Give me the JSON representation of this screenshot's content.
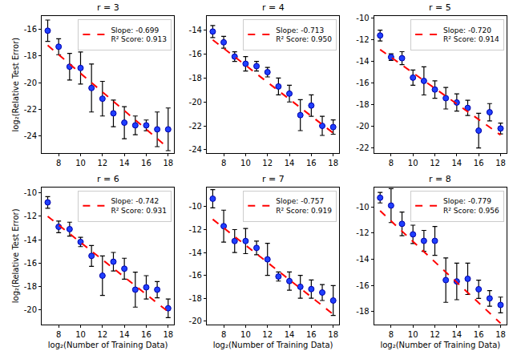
{
  "chart_data": [
    {
      "type": "scatter",
      "title": "r = 3",
      "y_label": "log₂(Relative Test Error)",
      "x": [
        7,
        8,
        9,
        10,
        11,
        12,
        13,
        14,
        15,
        16,
        17,
        18
      ],
      "values": [
        -16.1,
        -17.3,
        -18.8,
        -18.9,
        -20.4,
        -21.2,
        -22.3,
        -23.0,
        -23.2,
        -23.2,
        -23.5,
        -23.5
      ],
      "error": [
        0.8,
        0.6,
        1.0,
        1.2,
        1.8,
        1.3,
        1.0,
        1.2,
        0.7,
        0.4,
        1.3,
        1.6
      ],
      "color": "#1f3fff",
      "marker": "circle",
      "fit": {
        "x": [
          7,
          18
        ],
        "values": [
          -17.2,
          -24.9
        ],
        "color": "#ff0000",
        "line_style": "dashed",
        "legend_lines": [
          "Slope: -0.699",
          "R² Score: 0.913"
        ]
      },
      "xlim": [
        6.45,
        18.55
      ],
      "xticks": [
        8,
        10,
        12,
        14,
        16,
        18
      ],
      "ylim": [
        -25.3,
        -15.0
      ],
      "yticks": [
        -24,
        -22,
        -20,
        -18,
        -16
      ],
      "grid": false,
      "legend": "upper right"
    },
    {
      "type": "scatter",
      "title": "r = 4",
      "x": [
        7,
        8,
        9,
        10,
        11,
        12,
        13,
        14,
        15,
        16,
        17,
        18
      ],
      "values": [
        -14.1,
        -15.0,
        -16.2,
        -16.8,
        -17.0,
        -17.5,
        -18.7,
        -19.3,
        -21.1,
        -20.3,
        -22.0,
        -22.1
      ],
      "error": [
        0.5,
        0.5,
        0.4,
        0.6,
        0.4,
        0.4,
        0.7,
        0.7,
        1.3,
        0.9,
        0.8,
        0.6
      ],
      "color": "#1f3fff",
      "marker": "circle",
      "fit": {
        "x": [
          7,
          18
        ],
        "values": [
          -14.8,
          -22.6
        ],
        "color": "#ff0000",
        "line_style": "dashed",
        "legend_lines": [
          "Slope: -0.713",
          "R² Score: 0.950"
        ]
      },
      "xlim": [
        6.45,
        18.55
      ],
      "xticks": [
        8,
        10,
        12,
        14,
        16,
        18
      ],
      "ylim": [
        -24.3,
        -12.8
      ],
      "yticks": [
        -24,
        -22,
        -20,
        -18,
        -16,
        -14
      ],
      "grid": false,
      "legend": "upper right"
    },
    {
      "type": "scatter",
      "title": "r = 5",
      "x": [
        7,
        8,
        9,
        10,
        11,
        12,
        13,
        14,
        15,
        16,
        17,
        18
      ],
      "values": [
        -11.6,
        -13.6,
        -13.7,
        -15.5,
        -15.8,
        -16.6,
        -17.4,
        -17.8,
        -18.3,
        -20.4,
        -18.7,
        -20.2
      ],
      "error": [
        0.5,
        0.3,
        0.6,
        0.7,
        1.3,
        0.8,
        1.0,
        0.8,
        0.7,
        1.6,
        0.8,
        0.5
      ],
      "color": "#1f3fff",
      "marker": "circle",
      "fit": {
        "x": [
          7,
          18
        ],
        "values": [
          -12.9,
          -20.8
        ],
        "color": "#ff0000",
        "line_style": "dashed",
        "legend_lines": [
          "Slope: -0.720",
          "R² Score: 0.914"
        ]
      },
      "xlim": [
        6.45,
        18.55
      ],
      "xticks": [
        8,
        10,
        12,
        14,
        16,
        18
      ],
      "ylim": [
        -22.5,
        -9.8
      ],
      "yticks": [
        -22,
        -20,
        -18,
        -16,
        -14,
        -12,
        -10
      ],
      "grid": false,
      "legend": "upper right"
    },
    {
      "type": "scatter",
      "title": "r = 6",
      "y_label": "log₂(Relative Test Error)",
      "x_label": "log₂(Number of Training Data)",
      "x": [
        7,
        8,
        9,
        10,
        11,
        12,
        13,
        14,
        15,
        16,
        17,
        18
      ],
      "values": [
        -10.8,
        -12.9,
        -13.1,
        -14.2,
        -15.4,
        -17.1,
        -15.9,
        -16.5,
        -18.3,
        -18.1,
        -18.3,
        -19.9
      ],
      "error": [
        0.5,
        0.5,
        0.6,
        0.4,
        0.9,
        1.7,
        0.8,
        0.9,
        1.5,
        1.0,
        0.7,
        0.8
      ],
      "color": "#1f3fff",
      "marker": "circle",
      "fit": {
        "x": [
          7,
          18
        ],
        "values": [
          -12.0,
          -20.2
        ],
        "color": "#ff0000",
        "line_style": "dashed",
        "legend_lines": [
          "Slope: -0.742",
          "R² Score: 0.931"
        ]
      },
      "xlim": [
        6.45,
        18.55
      ],
      "xticks": [
        8,
        10,
        12,
        14,
        16,
        18
      ],
      "ylim": [
        -21.3,
        -9.5
      ],
      "yticks": [
        -20,
        -18,
        -16,
        -14,
        -12,
        -10
      ],
      "grid": false,
      "legend": "upper right"
    },
    {
      "type": "scatter",
      "title": "r = 7",
      "x_label": "log₂(Number of Training Data)",
      "x": [
        7,
        8,
        9,
        10,
        11,
        12,
        13,
        14,
        15,
        16,
        17,
        18
      ],
      "values": [
        -9.3,
        -11.7,
        -13.0,
        -13.0,
        -13.6,
        -14.6,
        -16.1,
        -16.5,
        -17.0,
        -17.2,
        -17.5,
        -18.2
      ],
      "error": [
        0.8,
        1.4,
        1.0,
        1.1,
        0.6,
        1.4,
        0.4,
        0.8,
        1.0,
        0.8,
        0.7,
        1.3
      ],
      "color": "#1f3fff",
      "marker": "circle",
      "fit": {
        "x": [
          7,
          18
        ],
        "values": [
          -11.1,
          -19.4
        ],
        "color": "#ff0000",
        "line_style": "dashed",
        "legend_lines": [
          "Slope: -0.757",
          "R² Score: 0.919"
        ]
      },
      "xlim": [
        6.45,
        18.55
      ],
      "xticks": [
        8,
        10,
        12,
        14,
        16,
        18
      ],
      "ylim": [
        -20.3,
        -8.3
      ],
      "yticks": [
        -20,
        -18,
        -16,
        -14,
        -12,
        -10
      ],
      "grid": false,
      "legend": "upper right"
    },
    {
      "type": "scatter",
      "title": "r = 8",
      "x_label": "log₂(Number of Training Data)",
      "x": [
        7,
        8,
        9,
        10,
        11,
        12,
        13,
        14,
        15,
        16,
        17,
        18
      ],
      "values": [
        -9.3,
        -9.9,
        -11.3,
        -12.1,
        -12.6,
        -12.6,
        -15.6,
        -15.7,
        -15.5,
        -16.3,
        -17.0,
        -17.5
      ],
      "error": [
        0.4,
        1.3,
        0.9,
        0.7,
        0.8,
        1.1,
        1.7,
        1.4,
        1.2,
        0.7,
        0.6,
        0.6
      ],
      "color": "#1f3fff",
      "marker": "circle",
      "fit": {
        "x": [
          7,
          18
        ],
        "values": [
          -10.3,
          -18.9
        ],
        "color": "#ff0000",
        "line_style": "dashed",
        "legend_lines": [
          "Slope: -0.779",
          "R² Score: 0.956"
        ]
      },
      "xlim": [
        6.45,
        18.55
      ],
      "xticks": [
        8,
        10,
        12,
        14,
        16,
        18
      ],
      "ylim": [
        -19.0,
        -8.5
      ],
      "yticks": [
        -18,
        -16,
        -14,
        -12,
        -10
      ],
      "grid": false,
      "legend": "upper right"
    }
  ]
}
